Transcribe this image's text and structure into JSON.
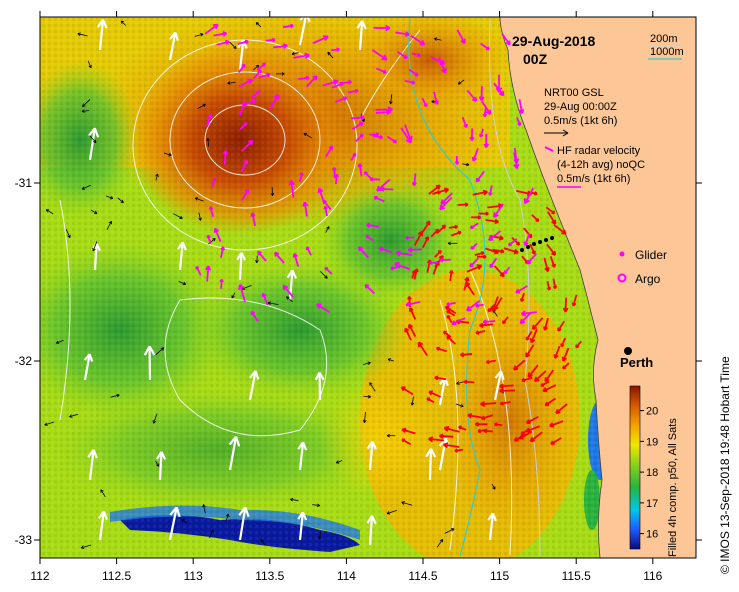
{
  "map": {
    "date_label": "29-Aug-2018",
    "time_label": "00Z",
    "depth_legend": [
      {
        "label": "200m",
        "color": "#d0d0d0"
      },
      {
        "label": "1000m",
        "color": "#38c8c8"
      }
    ],
    "wind_legend": {
      "line1": "NRT00 GSL",
      "line2": "29-Aug 00:00Z",
      "line3": "0.5m/s (1kt 6h)"
    },
    "radar_legend": {
      "line1": "HF radar velocity",
      "line2": "(4-12h avg) noQC",
      "line3": "0.5m/s (1kt 6h)"
    },
    "markers": [
      {
        "label": "Glider",
        "color": "#ff00ff"
      },
      {
        "label": "Argo",
        "color": "#ff00ff"
      }
    ],
    "city": {
      "label": "Perth"
    },
    "colorbar": {
      "title": "Filled 4h comp. p50, All Sats",
      "ticks": [
        "16",
        "17",
        "18",
        "19",
        "20"
      ],
      "range": [
        15.5,
        20.8
      ]
    },
    "credit": "© IMOS 13-Sep-2018 19:48 Hobart Time",
    "x_ticks": [
      "112",
      "112.5",
      "113",
      "113.5",
      "114",
      "114.5",
      "115",
      "115.5",
      "116"
    ],
    "y_ticks": [
      "-31",
      "-32",
      "-33"
    ],
    "colors": {
      "land": "#fcc696",
      "radar_vector": "#ff00ff",
      "current_vector": "#ff0000",
      "wind_vector": "#ffffff"
    }
  }
}
